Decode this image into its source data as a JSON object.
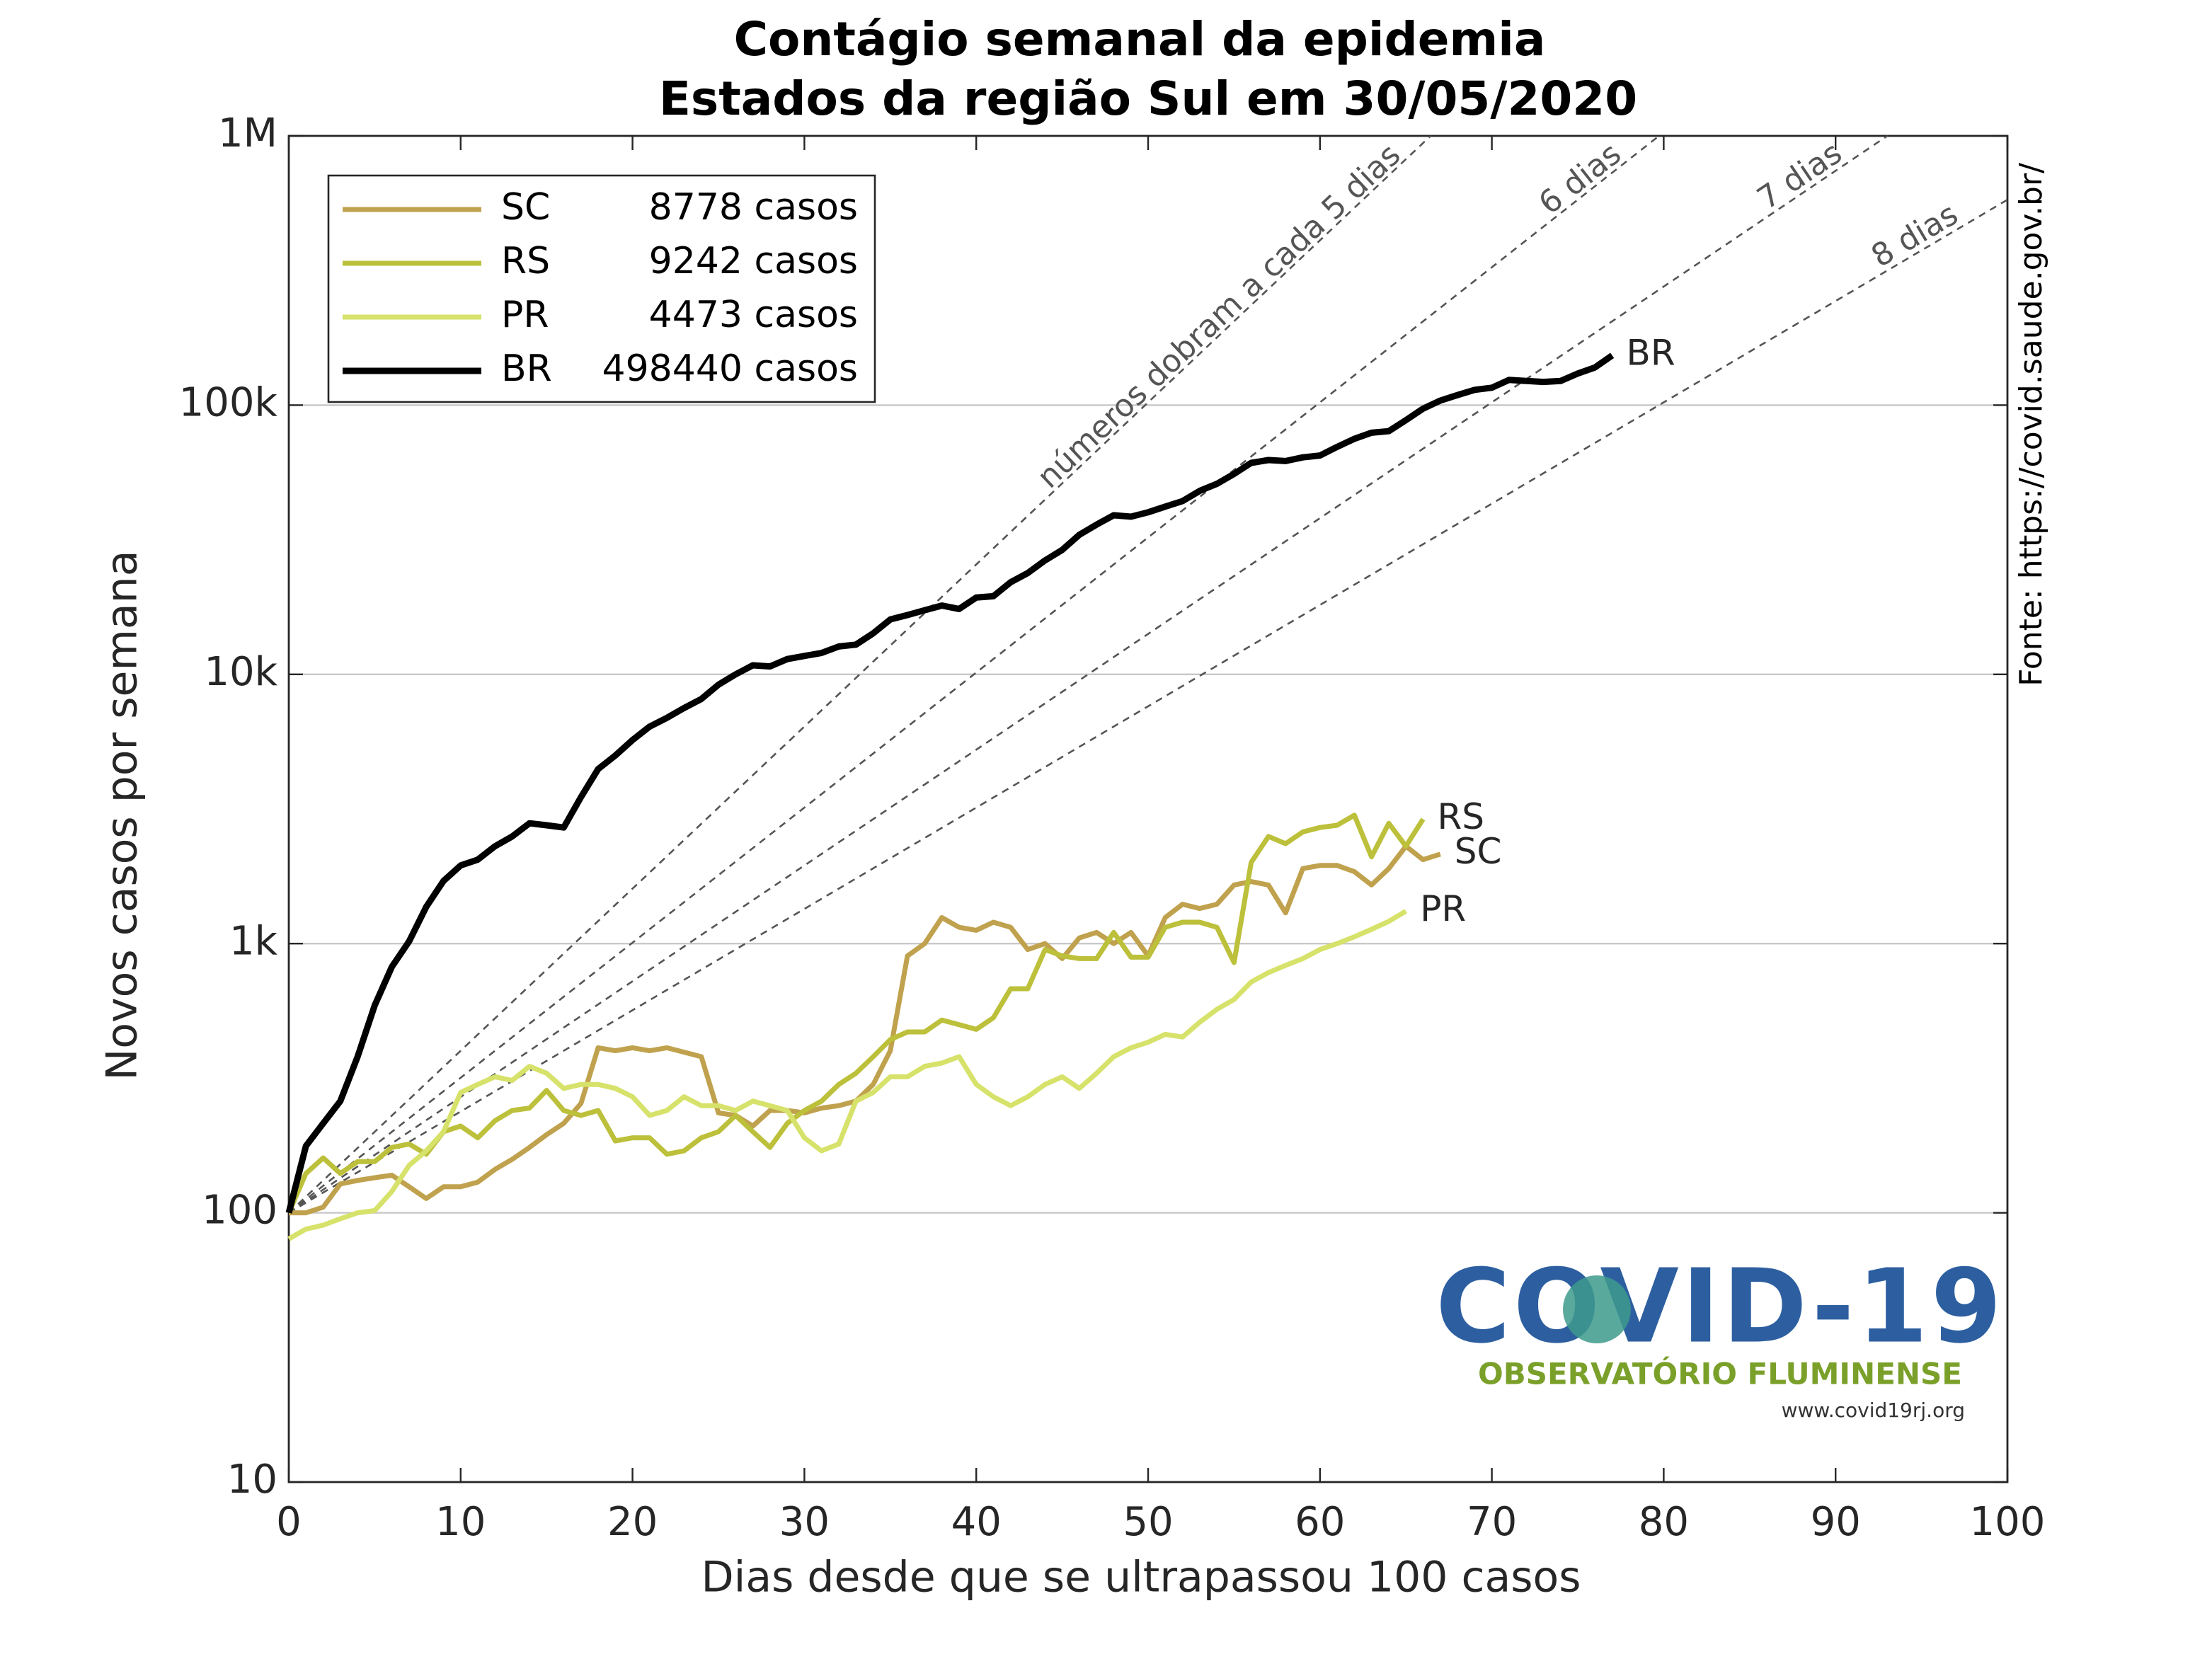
{
  "chart_data": {
    "type": "line",
    "title": "Contágio semanal da epidemia",
    "subtitle": "Estados da região Sul em 30/05/2020",
    "x_label": "Dias desde que se ultrapassou 100 casos",
    "y_label": "Novos casos por semana",
    "source": "Fonte: https://covid.saude.gov.br/",
    "log_y": true,
    "grid": true,
    "legend_position": "upper-left",
    "xlim": [
      0,
      100
    ],
    "xticks": [
      0,
      10,
      20,
      30,
      40,
      50,
      60,
      70,
      80,
      90,
      100
    ],
    "ylim": [
      10,
      1000000
    ],
    "yticks": [
      10,
      100,
      {
        "value": 1000,
        "label": "1k"
      },
      {
        "value": 10000,
        "label": "10k"
      },
      {
        "value": 100000,
        "label": "100k"
      },
      {
        "value": 1000000,
        "label": "1M"
      }
    ],
    "x": [
      0,
      1,
      2,
      3,
      4,
      5,
      6,
      7,
      8,
      9,
      10,
      11,
      12,
      13,
      14,
      15,
      16,
      17,
      18,
      19,
      20,
      21,
      22,
      23,
      24,
      25,
      26,
      27,
      28,
      29,
      30,
      31,
      32,
      33,
      34,
      35,
      36,
      37,
      38,
      39,
      40,
      41,
      42,
      43,
      44,
      45,
      46,
      47,
      48,
      49,
      50,
      51,
      52,
      53,
      54,
      55,
      56,
      57,
      58,
      59,
      60,
      61,
      62,
      63,
      64,
      65,
      66,
      67,
      68,
      69,
      70,
      71,
      72,
      73,
      74,
      75,
      76,
      77
    ],
    "doubling_lines": [
      {
        "days": 5,
        "label": "números dobram a cada 5 dias"
      },
      {
        "days": 6,
        "label": "6 dias"
      },
      {
        "days": 7,
        "label": "7 dias"
      },
      {
        "days": 8,
        "label": "8 dias"
      }
    ],
    "series": [
      {
        "name": "SC",
        "total_label": "8778 casos",
        "color": "#c0a24e",
        "values": [
          100,
          100,
          105,
          128,
          132,
          135,
          138,
          125,
          113,
          125,
          125,
          130,
          145,
          158,
          175,
          195,
          215,
          255,
          410,
          400,
          410,
          400,
          410,
          395,
          380,
          235,
          230,
          210,
          240,
          240,
          235,
          245,
          250,
          260,
          300,
          400,
          900,
          1000,
          1250,
          1150,
          1120,
          1200,
          1150,
          950,
          1000,
          880,
          1050,
          1100,
          1000,
          1100,
          900,
          1250,
          1400,
          1350,
          1400,
          1650,
          1700,
          1650,
          1300,
          1900,
          1950,
          1950,
          1850,
          1650,
          1900,
          2300,
          2050,
          2150,
          null,
          null,
          null,
          null,
          null,
          null,
          null,
          null,
          null,
          null
        ]
      },
      {
        "name": "RS",
        "total_label": "9242 casos",
        "color": "#bcc03a",
        "values": [
          100,
          140,
          160,
          140,
          155,
          155,
          175,
          180,
          165,
          200,
          210,
          190,
          220,
          240,
          245,
          285,
          240,
          230,
          240,
          185,
          190,
          190,
          165,
          170,
          190,
          200,
          230,
          200,
          175,
          215,
          240,
          260,
          300,
          330,
          380,
          440,
          470,
          470,
          520,
          500,
          480,
          530,
          680,
          680,
          950,
          900,
          880,
          880,
          1100,
          890,
          890,
          1150,
          1200,
          1200,
          1150,
          850,
          2000,
          2500,
          2350,
          2600,
          2700,
          2750,
          3000,
          2100,
          2800,
          2300,
          2900,
          null,
          null,
          null,
          null,
          null,
          null,
          null,
          null,
          null,
          null,
          null
        ]
      },
      {
        "name": "PR",
        "total_label": "4473 casos",
        "color": "#d6e26a",
        "values": [
          80,
          87,
          90,
          95,
          100,
          102,
          120,
          150,
          170,
          200,
          280,
          300,
          320,
          310,
          350,
          330,
          290,
          300,
          300,
          290,
          270,
          230,
          240,
          270,
          250,
          250,
          240,
          260,
          250,
          240,
          190,
          170,
          180,
          260,
          280,
          320,
          320,
          350,
          360,
          380,
          300,
          270,
          250,
          270,
          300,
          320,
          290,
          330,
          380,
          410,
          430,
          460,
          450,
          510,
          570,
          620,
          720,
          780,
          830,
          880,
          950,
          1000,
          1060,
          1130,
          1210,
          1320,
          null,
          null,
          null,
          null,
          null,
          null,
          null,
          null,
          null,
          null,
          null,
          null
        ]
      },
      {
        "name": "BR",
        "total_label": "498440 casos",
        "color": "#000000",
        "values": [
          100,
          177,
          215,
          260,
          380,
          590,
          820,
          1020,
          1370,
          1710,
          1950,
          2050,
          2300,
          2500,
          2800,
          2750,
          2700,
          3500,
          4450,
          5000,
          5700,
          6400,
          6900,
          7500,
          8100,
          9150,
          10000,
          10800,
          10700,
          11400,
          11700,
          12000,
          12700,
          12900,
          14200,
          16000,
          16600,
          17300,
          18000,
          17500,
          19300,
          19500,
          22000,
          23800,
          26500,
          29000,
          33000,
          36000,
          39000,
          38500,
          40000,
          42000,
          44000,
          48000,
          51000,
          55500,
          61000,
          62500,
          62000,
          64000,
          65000,
          70000,
          75000,
          79000,
          80000,
          88000,
          97000,
          104000,
          109000,
          114000,
          116000,
          124000,
          123000,
          122000,
          123000,
          131000,
          138000,
          153000
        ]
      }
    ]
  },
  "logo": {
    "title": "COVID-19",
    "subtitle": "OBSERVATÓRIO FLUMINENSE",
    "url": "www.covid19rj.org"
  }
}
